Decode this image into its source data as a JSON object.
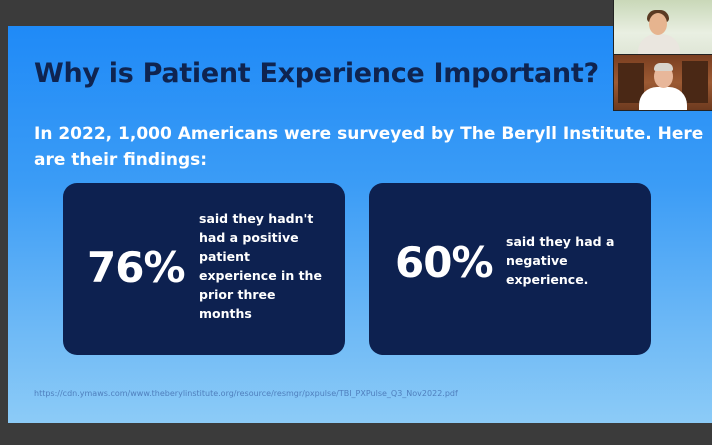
{
  "slide": {
    "title": "Why is Patient Experience Important?",
    "subtitle": "In 2022, 1,000 Americans were surveyed by The Beryll Institute. Here are their findings:",
    "cards": [
      {
        "stat": "76%",
        "description": "said they hadn't had a positive patient experience in the prior three months"
      },
      {
        "stat": "60%",
        "description": "said they had a negative experience."
      }
    ],
    "source": "https://cdn.ymaws.com/www.theberylinstitute.org/resource/resmgr/pxpulse/TBI_PXPulse_Q3_Nov2022.pdf"
  },
  "colors": {
    "background": "#3b3b3b",
    "slide_gradient_top": "#1f8af7",
    "slide_gradient_bottom": "#8ccbf7",
    "title": "#0f2450",
    "card": "#0d2150",
    "text_light": "#ffffff"
  }
}
